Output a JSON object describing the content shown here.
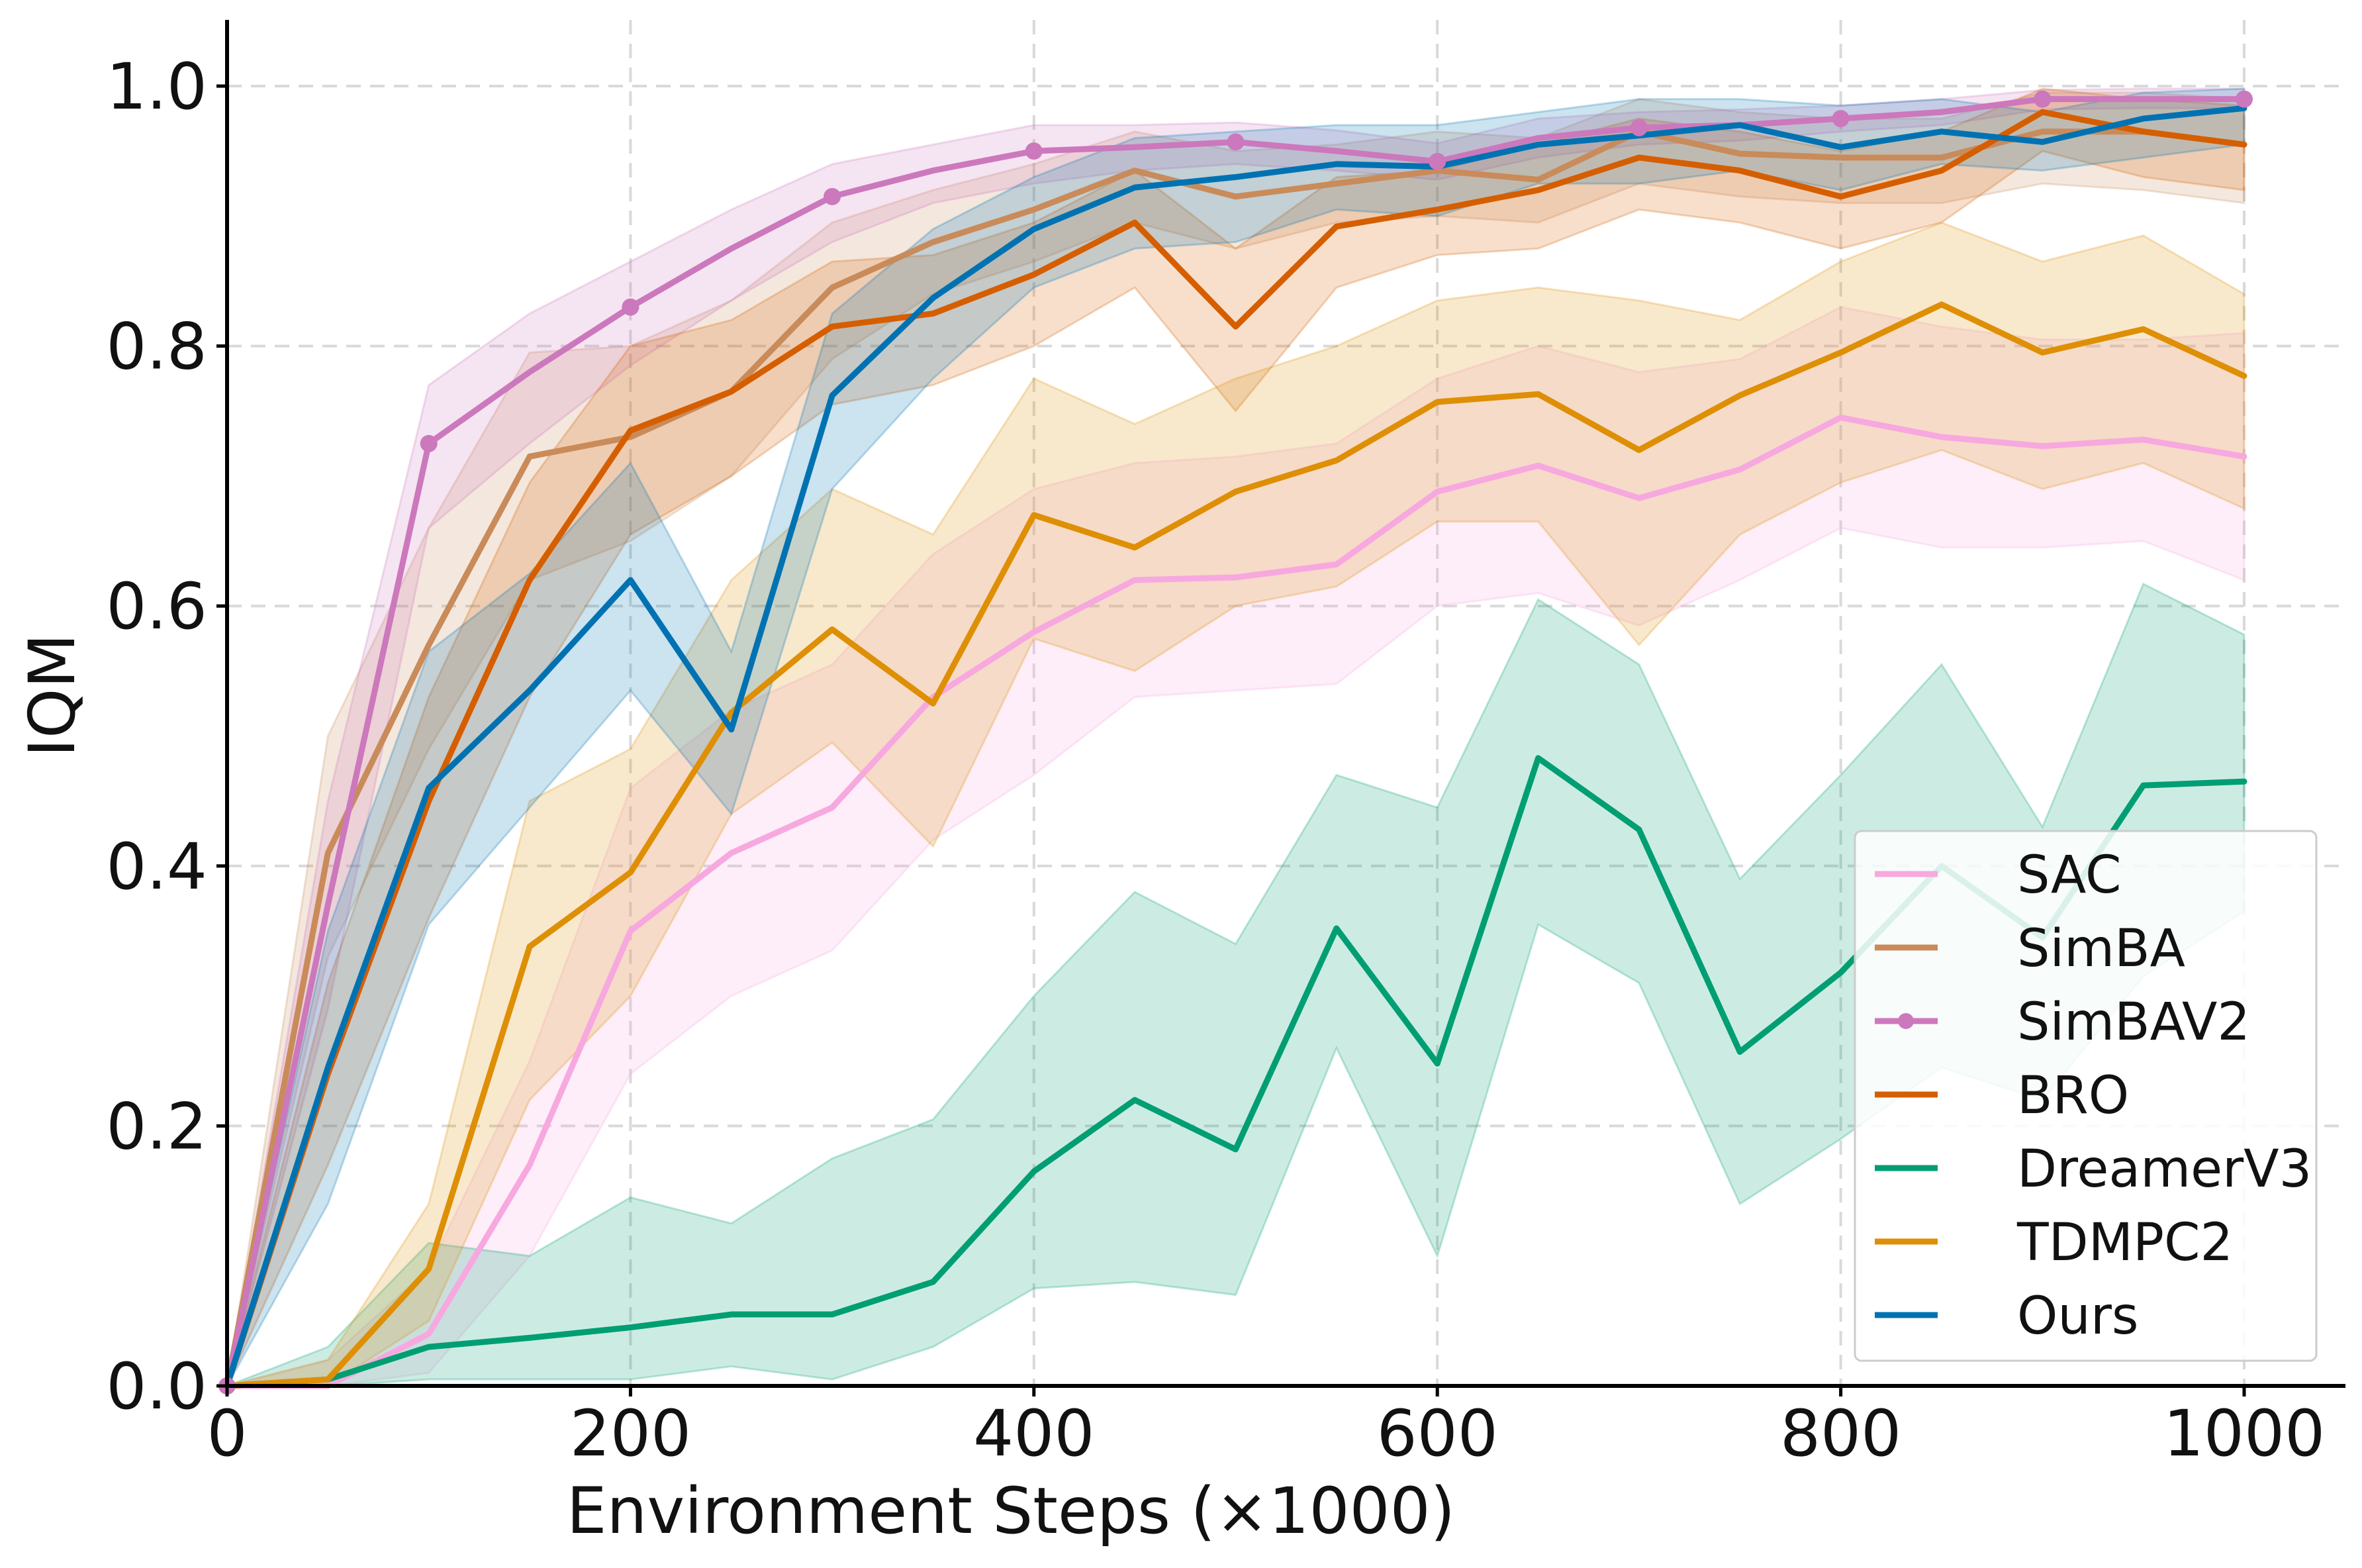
{
  "chart_data": {
    "type": "line",
    "title": "",
    "xlabel": "Environment Steps (×1000)",
    "ylabel": "IQM",
    "xlim": [
      0,
      1050
    ],
    "ylim": [
      0,
      1.05
    ],
    "x_ticks": [
      0,
      200,
      400,
      600,
      800,
      1000
    ],
    "x_tick_labels": [
      "0",
      "200",
      "400",
      "600",
      "800",
      "1000"
    ],
    "y_ticks": [
      0,
      0.2,
      0.4,
      0.6,
      0.8,
      1.0
    ],
    "y_tick_labels": [
      "0.0",
      "0.2",
      "0.4",
      "0.6",
      "0.8",
      "1.0"
    ],
    "grid": true,
    "legend_position": "lower-right",
    "x": [
      0,
      50,
      100,
      150,
      200,
      250,
      300,
      350,
      400,
      450,
      500,
      550,
      600,
      650,
      700,
      750,
      800,
      850,
      900,
      950,
      1000
    ],
    "series": [
      {
        "name": "SAC",
        "color": "#f7a8df",
        "markers": false,
        "values": [
          0.0,
          0.0,
          0.04,
          0.17,
          0.35,
          0.41,
          0.445,
          0.53,
          0.58,
          0.62,
          0.622,
          0.632,
          0.688,
          0.708,
          0.683,
          0.705,
          0.745,
          0.73,
          0.723,
          0.728,
          0.715
        ],
        "lower": [
          0.0,
          0.0,
          0.01,
          0.1,
          0.24,
          0.3,
          0.335,
          0.42,
          0.47,
          0.53,
          0.535,
          0.54,
          0.6,
          0.61,
          0.585,
          0.62,
          0.66,
          0.645,
          0.645,
          0.65,
          0.62
        ],
        "upper": [
          0.0,
          0.02,
          0.09,
          0.25,
          0.46,
          0.52,
          0.555,
          0.64,
          0.69,
          0.71,
          0.715,
          0.725,
          0.775,
          0.8,
          0.78,
          0.79,
          0.83,
          0.815,
          0.805,
          0.805,
          0.81
        ]
      },
      {
        "name": "SimBA",
        "color": "#c98b5a",
        "markers": false,
        "values": [
          0.0,
          0.41,
          0.57,
          0.715,
          0.73,
          0.765,
          0.845,
          0.88,
          0.905,
          0.935,
          0.915,
          0.925,
          0.935,
          0.928,
          0.965,
          0.948,
          0.945,
          0.945,
          0.965,
          0.965,
          0.955
        ],
        "lower": [
          0.0,
          0.33,
          0.49,
          0.62,
          0.65,
          0.7,
          0.79,
          0.84,
          0.865,
          0.895,
          0.875,
          0.895,
          0.9,
          0.895,
          0.925,
          0.915,
          0.91,
          0.91,
          0.925,
          0.92,
          0.91
        ],
        "upper": [
          0.0,
          0.5,
          0.66,
          0.795,
          0.8,
          0.835,
          0.895,
          0.92,
          0.94,
          0.965,
          0.95,
          0.955,
          0.965,
          0.96,
          0.99,
          0.98,
          0.975,
          0.975,
          0.995,
          0.995,
          0.99
        ]
      },
      {
        "name": "SimBAV2",
        "color": "#cc78bc",
        "markers": true,
        "values": [
          0.0,
          0.37,
          0.725,
          0.78,
          0.83,
          0.875,
          0.915,
          0.935,
          0.95,
          0.953,
          0.957,
          0.95,
          0.942,
          0.96,
          0.968,
          0.97,
          0.975,
          0.98,
          0.99,
          0.99,
          0.99
        ],
        "lower": [
          0.0,
          0.29,
          0.66,
          0.725,
          0.785,
          0.835,
          0.88,
          0.91,
          0.925,
          0.935,
          0.94,
          0.935,
          0.928,
          0.945,
          0.955,
          0.958,
          0.965,
          0.97,
          0.982,
          0.983,
          0.983
        ],
        "upper": [
          0.0,
          0.45,
          0.77,
          0.825,
          0.865,
          0.905,
          0.94,
          0.955,
          0.97,
          0.97,
          0.972,
          0.966,
          0.956,
          0.975,
          0.98,
          0.982,
          0.985,
          0.99,
          0.997,
          0.998,
          0.998
        ]
      },
      {
        "name": "BRO",
        "color": "#d55e00",
        "markers": false,
        "values": [
          0.0,
          0.24,
          0.45,
          0.62,
          0.735,
          0.765,
          0.815,
          0.825,
          0.855,
          0.895,
          0.815,
          0.892,
          0.905,
          0.92,
          0.945,
          0.935,
          0.915,
          0.935,
          0.98,
          0.965,
          0.955
        ],
        "lower": [
          0.0,
          0.17,
          0.36,
          0.53,
          0.655,
          0.7,
          0.755,
          0.77,
          0.8,
          0.845,
          0.75,
          0.845,
          0.87,
          0.875,
          0.905,
          0.895,
          0.875,
          0.895,
          0.95,
          0.93,
          0.92
        ],
        "upper": [
          0.0,
          0.31,
          0.53,
          0.695,
          0.8,
          0.82,
          0.865,
          0.87,
          0.895,
          0.935,
          0.875,
          0.93,
          0.935,
          0.955,
          0.975,
          0.965,
          0.95,
          0.965,
          0.998,
          0.99,
          0.985
        ]
      },
      {
        "name": "DreamerV3",
        "color": "#009e73",
        "markers": false,
        "values": [
          0.0,
          0.005,
          0.03,
          0.037,
          0.045,
          0.055,
          0.055,
          0.08,
          0.165,
          0.22,
          0.182,
          0.352,
          0.248,
          0.483,
          0.428,
          0.257,
          0.318,
          0.4,
          0.345,
          0.462,
          0.465
        ],
        "lower": [
          0.0,
          0.0,
          0.005,
          0.005,
          0.005,
          0.015,
          0.005,
          0.03,
          0.075,
          0.08,
          0.07,
          0.26,
          0.1,
          0.355,
          0.31,
          0.14,
          0.19,
          0.245,
          0.22,
          0.315,
          0.365
        ],
        "upper": [
          0.0,
          0.03,
          0.11,
          0.1,
          0.145,
          0.125,
          0.175,
          0.205,
          0.3,
          0.38,
          0.34,
          0.47,
          0.445,
          0.605,
          0.555,
          0.39,
          0.47,
          0.555,
          0.43,
          0.617,
          0.578
        ]
      },
      {
        "name": "TDMPC2",
        "color": "#de8f05",
        "markers": false,
        "values": [
          0.0,
          0.005,
          0.09,
          0.338,
          0.395,
          0.518,
          0.582,
          0.525,
          0.67,
          0.645,
          0.688,
          0.712,
          0.757,
          0.763,
          0.72,
          0.762,
          0.795,
          0.832,
          0.795,
          0.813,
          0.777
        ],
        "lower": [
          0.0,
          0.0,
          0.05,
          0.22,
          0.3,
          0.44,
          0.495,
          0.415,
          0.575,
          0.55,
          0.6,
          0.615,
          0.665,
          0.665,
          0.57,
          0.655,
          0.695,
          0.72,
          0.69,
          0.71,
          0.675
        ],
        "upper": [
          0.0,
          0.02,
          0.14,
          0.45,
          0.49,
          0.62,
          0.69,
          0.655,
          0.775,
          0.74,
          0.775,
          0.8,
          0.835,
          0.845,
          0.835,
          0.82,
          0.865,
          0.895,
          0.865,
          0.885,
          0.84
        ]
      },
      {
        "name": "Ours",
        "color": "#0072b2",
        "markers": false,
        "values": [
          0.0,
          0.245,
          0.46,
          0.535,
          0.62,
          0.505,
          0.762,
          0.837,
          0.89,
          0.922,
          0.93,
          0.94,
          0.938,
          0.955,
          0.962,
          0.97,
          0.953,
          0.965,
          0.957,
          0.975,
          0.983
        ],
        "lower": [
          0.0,
          0.14,
          0.355,
          0.445,
          0.535,
          0.44,
          0.69,
          0.775,
          0.845,
          0.875,
          0.88,
          0.905,
          0.9,
          0.925,
          0.925,
          0.935,
          0.92,
          0.94,
          0.935,
          0.945,
          0.955
        ],
        "upper": [
          0.0,
          0.35,
          0.565,
          0.625,
          0.71,
          0.565,
          0.825,
          0.89,
          0.93,
          0.96,
          0.965,
          0.97,
          0.97,
          0.98,
          0.99,
          0.99,
          0.985,
          0.99,
          0.98,
          0.995,
          0.998
        ]
      }
    ]
  }
}
